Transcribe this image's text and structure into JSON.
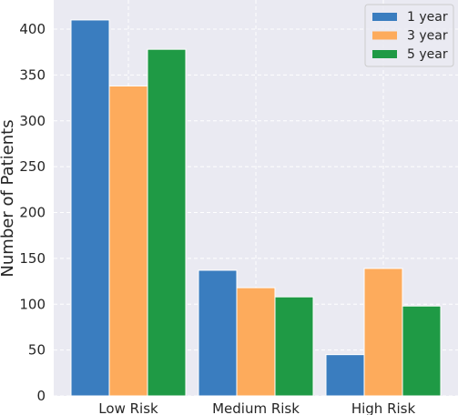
{
  "chart_data": {
    "type": "bar",
    "title": "",
    "xlabel": "",
    "ylabel": "Number of Patients",
    "categories": [
      "Low Risk",
      "Medium Risk",
      "High Risk"
    ],
    "series": [
      {
        "name": "1 year",
        "values": [
          410,
          137,
          45
        ],
        "color": "#3a7dbf"
      },
      {
        "name": "3 year",
        "values": [
          338,
          118,
          139
        ],
        "color": "#fdab5c"
      },
      {
        "name": "5 year",
        "values": [
          378,
          108,
          98
        ],
        "color": "#1f9a45"
      }
    ],
    "ylim": [
      0,
      425
    ],
    "yticks": [
      0,
      50,
      100,
      150,
      200,
      250,
      300,
      350,
      400
    ],
    "grid": true,
    "legend_position": "top-right",
    "background": "#eaeaf2"
  }
}
